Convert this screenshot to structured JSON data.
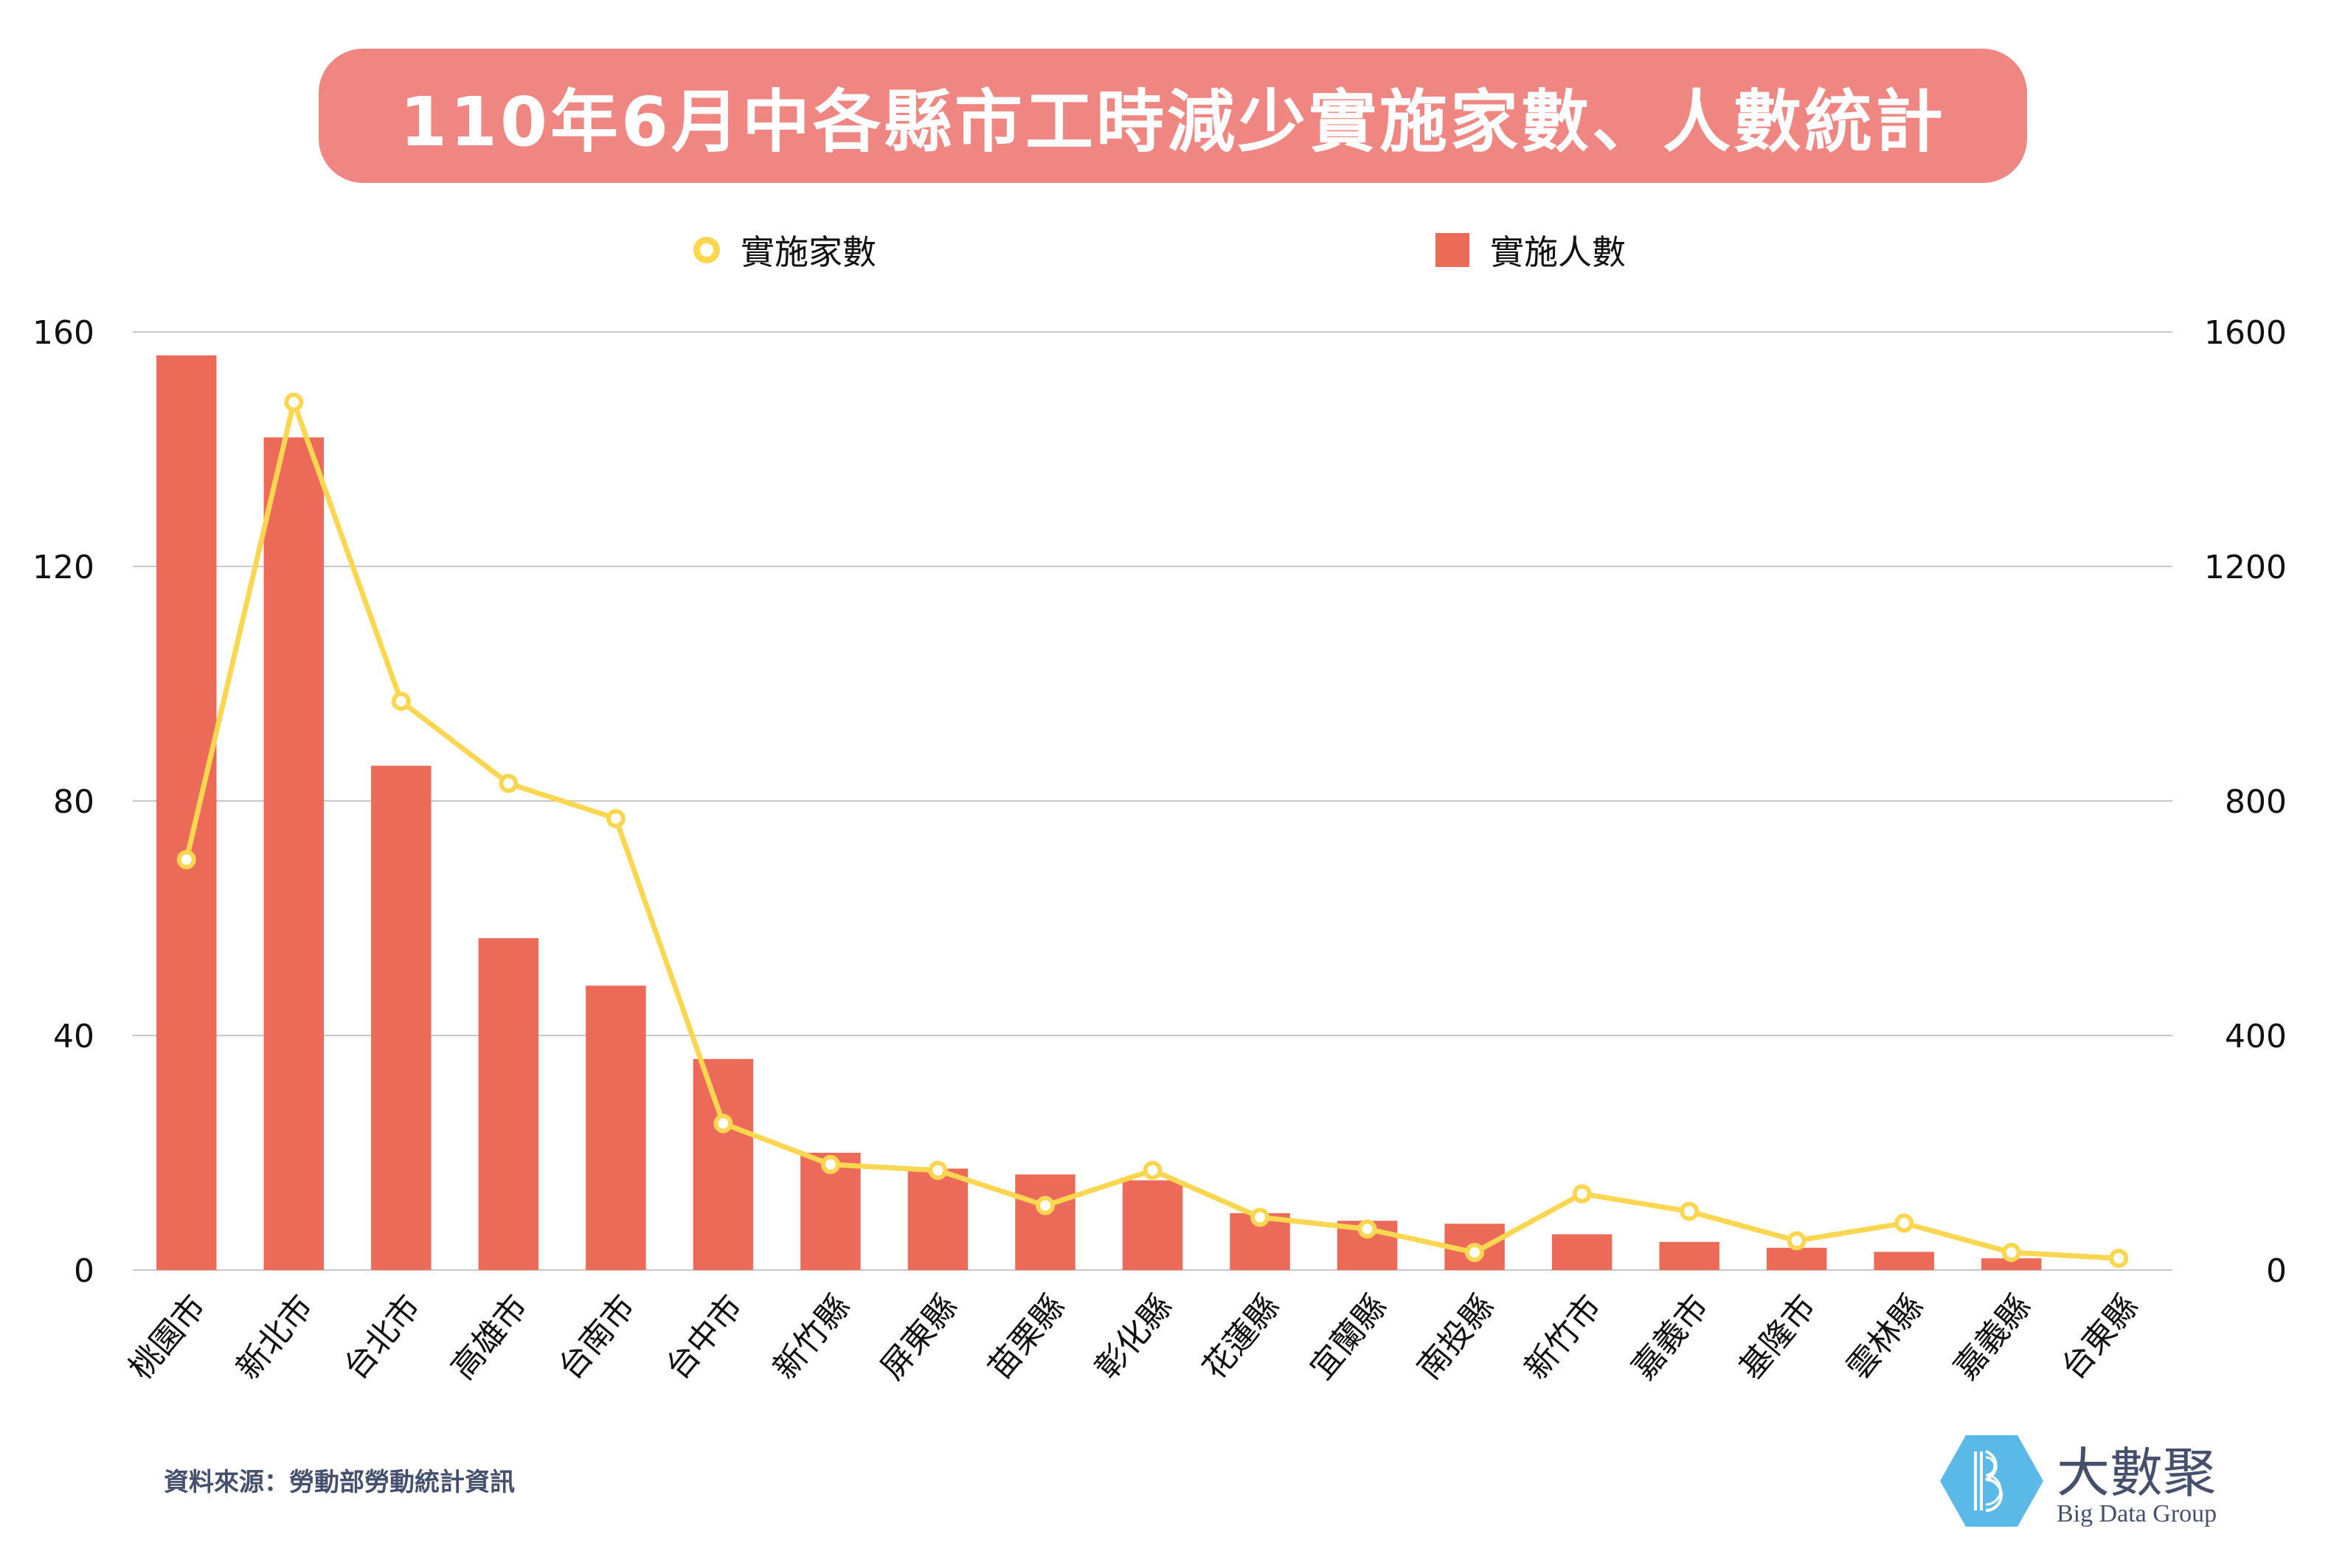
{
  "title": "110年6月中各縣市工時減少實施家數、人數統計",
  "legend": {
    "line_label": "實施家數",
    "bar_label": "實施人數"
  },
  "source": "資料來源：勞動部勞動統計資訊",
  "logo": {
    "name_cn": "大數聚",
    "name_en": "Big Data Group",
    "icon": "hexagon-b-logo-icon"
  },
  "colors": {
    "title_bg": "#f08682",
    "bar": "#ec6b58",
    "line": "#fbd650",
    "grid": "#c8c8c8",
    "logo_blue": "#5ab9e6",
    "text_dark": "#45506c"
  },
  "chart_data": {
    "type": "bar+line",
    "title": "110年6月中各縣市工時減少實施家數、人數統計",
    "categories": [
      "桃園市",
      "新北市",
      "台北市",
      "高雄市",
      "台南市",
      "台中市",
      "新竹縣",
      "屏東縣",
      "苗栗縣",
      "彰化縣",
      "花蓮縣",
      "宜蘭縣",
      "南投縣",
      "新竹市",
      "嘉義市",
      "基隆市",
      "雲林縣",
      "嘉義縣",
      "台東縣"
    ],
    "series": [
      {
        "name": "實施家數",
        "type": "line",
        "axis": "left",
        "values": [
          70,
          148,
          97,
          83,
          77,
          25,
          18,
          17,
          11,
          17,
          9,
          7,
          3,
          13,
          10,
          5,
          8,
          3,
          2
        ]
      },
      {
        "name": "實施人數",
        "type": "bar",
        "axis": "right",
        "values": [
          1560,
          1420,
          860,
          566,
          485,
          360,
          200,
          173,
          163,
          153,
          97,
          84,
          79,
          61,
          48,
          38,
          31,
          20,
          0
        ]
      }
    ],
    "y_left": {
      "ylim": [
        0,
        160
      ],
      "ticks": [
        0,
        40,
        80,
        120,
        160
      ]
    },
    "y_right": {
      "ylim": [
        0,
        1600
      ],
      "ticks": [
        0,
        400,
        800,
        1200,
        1600
      ]
    },
    "xlabel": "",
    "ylabel": "",
    "grid": true,
    "legend_position": "top-center"
  }
}
